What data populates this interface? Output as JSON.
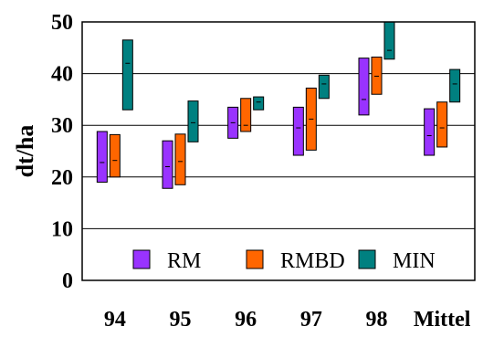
{
  "chart_data": {
    "type": "bar",
    "subtype": "floating-range",
    "title": "",
    "xlabel": "",
    "ylabel": "dt/ha",
    "ylim": [
      0,
      50
    ],
    "yticks": [
      0,
      10,
      20,
      30,
      40,
      50
    ],
    "grid": true,
    "legend_position": "bottom-inside",
    "categories": [
      "94",
      "95",
      "96",
      "97",
      "98",
      "Mittel"
    ],
    "series": [
      {
        "name": "RM",
        "color": "#9933ff",
        "low": [
          19.0,
          17.8,
          27.5,
          24.2,
          32.0,
          24.2
        ],
        "high": [
          28.8,
          27.0,
          33.5,
          33.5,
          43.0,
          33.2
        ],
        "mean": [
          22.8,
          22.0,
          30.5,
          29.5,
          35.0,
          28.0
        ]
      },
      {
        "name": "RMBD",
        "color": "#ff6600",
        "low": [
          20.0,
          18.5,
          28.8,
          25.2,
          36.0,
          25.8
        ],
        "high": [
          28.2,
          28.3,
          35.2,
          37.2,
          43.2,
          34.5
        ],
        "mean": [
          23.2,
          23.0,
          30.0,
          31.2,
          39.5,
          29.5
        ]
      },
      {
        "name": "MIN",
        "color": "#008080",
        "low": [
          33.0,
          26.8,
          33.0,
          35.2,
          42.8,
          34.5
        ],
        "high": [
          46.5,
          34.7,
          35.5,
          39.7,
          50.0,
          40.8
        ],
        "mean": [
          42.0,
          30.5,
          34.5,
          38.0,
          44.5,
          38.0
        ]
      }
    ]
  }
}
